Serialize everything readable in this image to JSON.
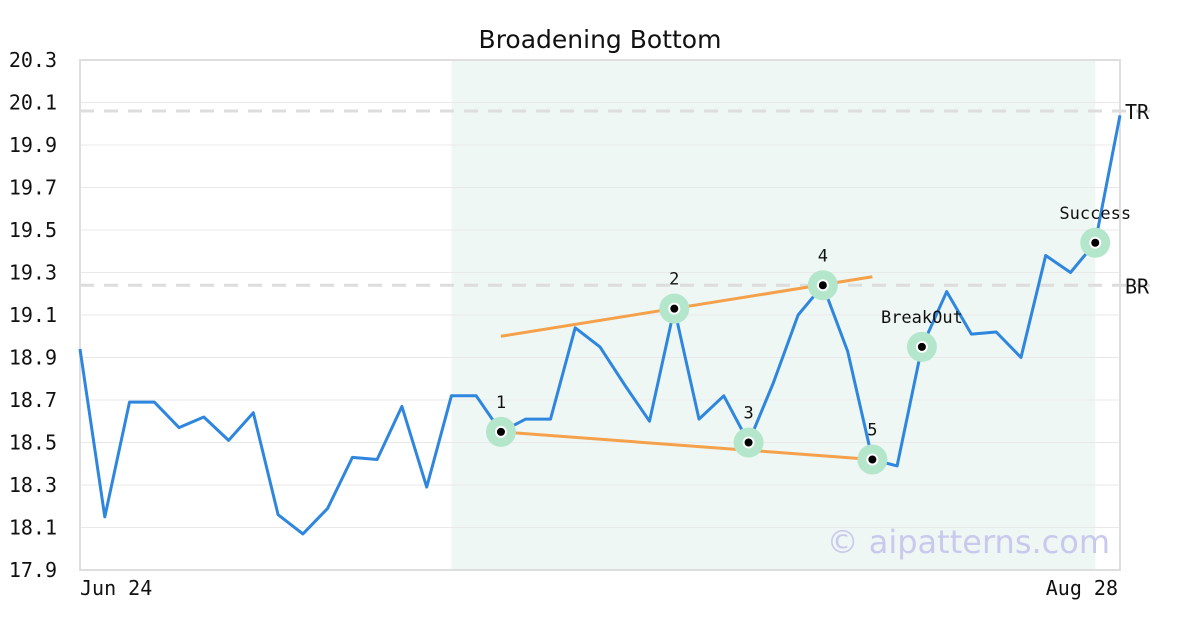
{
  "chart_data": {
    "type": "line",
    "title": "Broadening Bottom",
    "watermark": "© aipatterns.com",
    "x_labels": [
      "Jun 24",
      "Aug 28"
    ],
    "y_ticks": [
      "20.3",
      "20.1",
      "19.9",
      "19.7",
      "19.5",
      "19.3",
      "19.1",
      "18.9",
      "18.7",
      "18.5",
      "18.3",
      "18.1",
      "17.9"
    ],
    "ylim": [
      17.9,
      20.3
    ],
    "grid": true,
    "colors": {
      "price": "#2e86de",
      "trendline": "#f5a04a",
      "marker_halo": "#b4e6cc",
      "pattern_zone": "#eef7f3",
      "reference": "#dddddd"
    },
    "series": [
      {
        "values": [
          18.94,
          18.15,
          18.69,
          18.69,
          18.57,
          18.62,
          18.51,
          18.64,
          18.16,
          18.07,
          18.19,
          18.43,
          18.42,
          18.67,
          18.29,
          18.72,
          18.72,
          18.55,
          18.61,
          18.61,
          19.04,
          18.95,
          18.77,
          18.6,
          19.13,
          18.61,
          18.72,
          18.5,
          18.78,
          19.1,
          19.24,
          18.93,
          18.42,
          18.39,
          18.95,
          19.21,
          19.01,
          19.02,
          18.9,
          19.38,
          19.3,
          19.44,
          20.04
        ]
      }
    ],
    "pattern_zone": {
      "from": 15,
      "to": 41
    },
    "reference_lines": [
      {
        "label": "TR",
        "value": 20.06
      },
      {
        "label": "BR",
        "value": 19.24
      }
    ],
    "trendlines": [
      {
        "from": [
          17,
          19.0
        ],
        "to": [
          32,
          19.28
        ]
      },
      {
        "from": [
          17,
          18.55
        ],
        "to": [
          32,
          18.42
        ]
      }
    ],
    "points": [
      {
        "label": "1",
        "index": 17,
        "value": 18.55,
        "position": "above"
      },
      {
        "label": "2",
        "index": 24,
        "value": 19.13,
        "position": "above"
      },
      {
        "label": "3",
        "index": 27,
        "value": 18.5,
        "position": "above"
      },
      {
        "label": "4",
        "index": 30,
        "value": 19.24,
        "position": "above"
      },
      {
        "label": "5",
        "index": 32,
        "value": 18.42,
        "position": "above"
      },
      {
        "label": "BreakOut",
        "index": 34,
        "value": 18.95,
        "position": "above"
      },
      {
        "label": "Success",
        "index": 41,
        "value": 19.44,
        "position": "above"
      }
    ]
  }
}
